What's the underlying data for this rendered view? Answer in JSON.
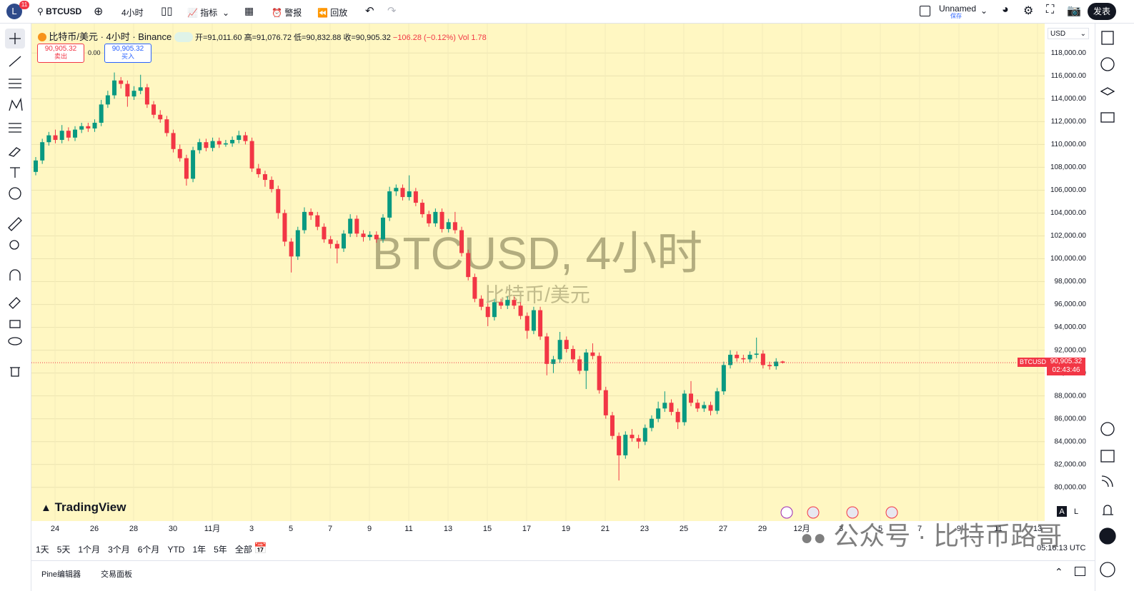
{
  "toolbar": {
    "badge": "11",
    "avatar": "L",
    "symbol": "BTCUSD",
    "interval": "4小时",
    "indicators": "指标",
    "alerts": "警报",
    "replay": "回放",
    "layout_name": "Unnamed",
    "save": "保存",
    "publish": "发表"
  },
  "header": {
    "title": "比特币/美元 · 4小时 · Binance",
    "open": "开=91,011.60",
    "high": "高=91,076.72",
    "low": "低=90,832.88",
    "close": "收=90,905.32",
    "change": "−106.28 (−0.12%)",
    "volume": "Vol 1.78",
    "sell_price": "90,905.32",
    "sell": "卖出",
    "spread": "0.00",
    "buy_price": "90,905.32",
    "buy": "买入",
    "currency": "USD"
  },
  "watermark": {
    "title": "BTCUSD, 4小时",
    "subtitle": "比特币/美元"
  },
  "logo": "TradingView",
  "price_tag": {
    "symbol": "BTCUSD",
    "price": "90,905.32",
    "countdown": "02:43:46"
  },
  "chart_data": {
    "type": "candlestick",
    "up_color": "#089981",
    "down_color": "#f23645",
    "ylim": [
      77050,
      120580
    ],
    "yticks": [
      {
        "value": 80000,
        "label": "80,000.00"
      },
      {
        "value": 82000,
        "label": "82,000.00"
      },
      {
        "value": 84000,
        "label": "84,000.00"
      },
      {
        "value": 86000,
        "label": "86,000.00"
      },
      {
        "value": 88000,
        "label": "88,000.00"
      },
      {
        "value": 90000,
        "label": "90,000.00"
      },
      {
        "value": 92000,
        "label": "92,000.00"
      },
      {
        "value": 94000,
        "label": "94,000.00"
      },
      {
        "value": 96000,
        "label": "96,000.00"
      },
      {
        "value": 98000,
        "label": "98,000.00"
      },
      {
        "value": 100000,
        "label": "100,000.00"
      },
      {
        "value": 102000,
        "label": "102,000.00"
      },
      {
        "value": 104000,
        "label": "104,000.00"
      },
      {
        "value": 106000,
        "label": "106,000.00"
      },
      {
        "value": 108000,
        "label": "108,000.00"
      },
      {
        "value": 110000,
        "label": "110,000.00"
      },
      {
        "value": 112000,
        "label": "112,000.00"
      },
      {
        "value": 114000,
        "label": "114,000.00"
      },
      {
        "value": 116000,
        "label": "116,000.00"
      },
      {
        "value": 118000,
        "label": "118,000.00"
      }
    ],
    "x_labels": [
      "24",
      "26",
      "28",
      "30",
      "11月",
      "3",
      "5",
      "7",
      "9",
      "11",
      "13",
      "15",
      "17",
      "19",
      "21",
      "23",
      "25",
      "27",
      "29",
      "12月",
      "3",
      "5",
      "7",
      "9",
      "11",
      "13"
    ],
    "candles": [
      [
        107600,
        108900,
        107300,
        108600
      ],
      [
        108600,
        110500,
        108300,
        110200
      ],
      [
        110200,
        111100,
        109900,
        110800
      ],
      [
        110800,
        111300,
        110100,
        110400
      ],
      [
        110400,
        111700,
        110100,
        111200
      ],
      [
        111200,
        111500,
        110300,
        110600
      ],
      [
        110600,
        111600,
        110300,
        111300
      ],
      [
        111300,
        111900,
        111000,
        111600
      ],
      [
        111600,
        111900,
        111100,
        111400
      ],
      [
        111400,
        112200,
        111100,
        111900
      ],
      [
        111900,
        113900,
        111600,
        113500
      ],
      [
        113500,
        114700,
        113200,
        114300
      ],
      [
        114300,
        116300,
        114000,
        115600
      ],
      [
        115600,
        115900,
        114900,
        115300
      ],
      [
        115300,
        115600,
        113300,
        114200
      ],
      [
        114200,
        115100,
        113900,
        114700
      ],
      [
        114700,
        116100,
        114400,
        115000
      ],
      [
        115000,
        115300,
        113200,
        113500
      ],
      [
        113500,
        113800,
        112300,
        112600
      ],
      [
        112600,
        113000,
        111900,
        112200
      ],
      [
        112200,
        112500,
        110700,
        111000
      ],
      [
        111000,
        111300,
        109300,
        109600
      ],
      [
        109600,
        110000,
        108500,
        108800
      ],
      [
        108800,
        109100,
        106400,
        107000
      ],
      [
        107000,
        109800,
        106700,
        109500
      ],
      [
        109500,
        110500,
        109200,
        110200
      ],
      [
        110200,
        110500,
        109400,
        109700
      ],
      [
        109700,
        110600,
        109400,
        110300
      ],
      [
        110300,
        110600,
        109700,
        110000
      ],
      [
        110000,
        110400,
        109800,
        110100
      ],
      [
        110100,
        110700,
        109800,
        110400
      ],
      [
        110400,
        111200,
        110100,
        110800
      ],
      [
        110800,
        111100,
        110000,
        110300
      ],
      [
        110300,
        110600,
        107600,
        107900
      ],
      [
        107900,
        108300,
        107100,
        107400
      ],
      [
        107400,
        107700,
        106300,
        106900
      ],
      [
        106900,
        107200,
        105800,
        106100
      ],
      [
        106100,
        106400,
        103500,
        104000
      ],
      [
        104000,
        104300,
        101100,
        101500
      ],
      [
        101500,
        101800,
        98800,
        100200
      ],
      [
        100200,
        102800,
        99900,
        102500
      ],
      [
        102500,
        104500,
        102200,
        104100
      ],
      [
        104100,
        104400,
        103400,
        103800
      ],
      [
        103800,
        104100,
        102500,
        102800
      ],
      [
        102800,
        103100,
        101400,
        101700
      ],
      [
        101700,
        102000,
        100900,
        101300
      ],
      [
        101300,
        101600,
        99600,
        100900
      ],
      [
        100900,
        102500,
        100600,
        102200
      ],
      [
        102200,
        103900,
        101900,
        103500
      ],
      [
        103500,
        103800,
        101900,
        102200
      ],
      [
        102200,
        102500,
        101500,
        101900
      ],
      [
        101900,
        102400,
        101600,
        102100
      ],
      [
        102100,
        102400,
        101400,
        101700
      ],
      [
        101700,
        103900,
        101400,
        103600
      ],
      [
        103600,
        106300,
        103300,
        105900
      ],
      [
        105900,
        106500,
        105500,
        106200
      ],
      [
        106200,
        106500,
        105100,
        105400
      ],
      [
        105400,
        107300,
        105100,
        105900
      ],
      [
        105900,
        106200,
        104600,
        104900
      ],
      [
        104900,
        105200,
        103600,
        103900
      ],
      [
        103900,
        104200,
        102800,
        103100
      ],
      [
        103100,
        104400,
        102800,
        104100
      ],
      [
        104100,
        104400,
        102300,
        102600
      ],
      [
        102600,
        103500,
        102300,
        103200
      ],
      [
        103200,
        104100,
        102200,
        102500
      ],
      [
        102500,
        102800,
        100200,
        100500
      ],
      [
        100500,
        100800,
        98100,
        98400
      ],
      [
        98400,
        98700,
        96200,
        96500
      ],
      [
        96500,
        96800,
        95500,
        95800
      ],
      [
        95800,
        96100,
        94100,
        94900
      ],
      [
        94900,
        96500,
        94600,
        96200
      ],
      [
        96200,
        96500,
        95600,
        95900
      ],
      [
        95900,
        96700,
        95600,
        96400
      ],
      [
        96400,
        96700,
        95600,
        95900
      ],
      [
        95900,
        96200,
        94700,
        95000
      ],
      [
        95000,
        95300,
        93000,
        93700
      ],
      [
        93700,
        95800,
        93400,
        95500
      ],
      [
        95500,
        95800,
        92900,
        93200
      ],
      [
        93200,
        93500,
        89800,
        90800
      ],
      [
        90800,
        91500,
        90000,
        91200
      ],
      [
        91200,
        93600,
        90900,
        92900
      ],
      [
        92900,
        93200,
        91800,
        92100
      ],
      [
        92100,
        92400,
        90900,
        91200
      ],
      [
        91200,
        91500,
        89900,
        90200
      ],
      [
        90200,
        92100,
        88600,
        91800
      ],
      [
        91800,
        92600,
        91200,
        91500
      ],
      [
        91500,
        91800,
        88200,
        88500
      ],
      [
        88500,
        88800,
        86000,
        86300
      ],
      [
        86300,
        86600,
        84200,
        84500
      ],
      [
        84500,
        84800,
        80600,
        82800
      ],
      [
        82800,
        84900,
        82500,
        84600
      ],
      [
        84600,
        85100,
        84000,
        84300
      ],
      [
        84300,
        84600,
        83400,
        84000
      ],
      [
        84000,
        85500,
        83700,
        85200
      ],
      [
        85200,
        86300,
        84900,
        86000
      ],
      [
        86000,
        87500,
        85700,
        86900
      ],
      [
        86900,
        88400,
        86600,
        87400
      ],
      [
        87400,
        87700,
        86300,
        86600
      ],
      [
        86600,
        86900,
        85100,
        85700
      ],
      [
        85700,
        88500,
        85400,
        88200
      ],
      [
        88200,
        89300,
        87100,
        87400
      ],
      [
        87400,
        87700,
        86600,
        86900
      ],
      [
        86900,
        87500,
        86600,
        87200
      ],
      [
        87200,
        87500,
        86300,
        86700
      ],
      [
        86700,
        88700,
        86400,
        88400
      ],
      [
        88400,
        91000,
        88100,
        90700
      ],
      [
        90700,
        92000,
        90400,
        91600
      ],
      [
        91600,
        91900,
        91000,
        91300
      ],
      [
        91300,
        91600,
        90900,
        91200
      ],
      [
        91200,
        91900,
        90900,
        91600
      ],
      [
        91600,
        93100,
        91300,
        91700
      ],
      [
        91700,
        92000,
        90400,
        90700
      ],
      [
        90700,
        91000,
        90300,
        90600
      ],
      [
        90600,
        91300,
        90300,
        91000
      ],
      [
        91011.6,
        91076.72,
        90832.88,
        90905.32
      ]
    ]
  },
  "scale_buttons": [
    "A",
    "L"
  ],
  "range_buttons": [
    "1天",
    "5天",
    "1个月",
    "3个月",
    "6个月",
    "YTD",
    "1年",
    "5年",
    "全部"
  ],
  "clock": "05:16:13 UTC",
  "bottom_tabs": [
    "Pine编辑器",
    "交易面板"
  ],
  "overlay": "公众号 · 比特币路哥"
}
